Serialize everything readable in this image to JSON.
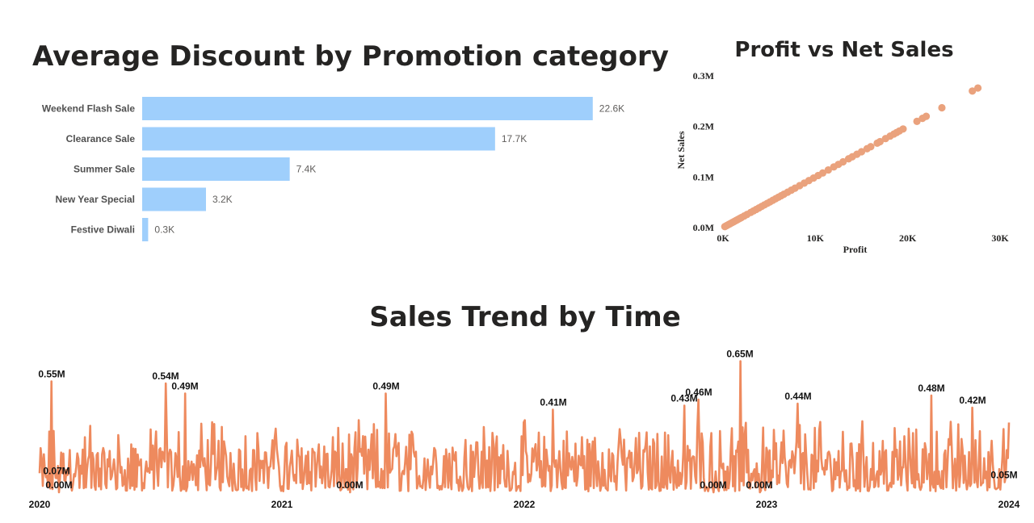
{
  "colors": {
    "bar": "#9FCFFC",
    "scatter": "#EAA27D",
    "line": "#EE8A5E"
  },
  "chart_data": [
    {
      "type": "bar",
      "orientation": "horizontal",
      "title": "Average Discount by Promotion category",
      "categories": [
        "Weekend Flash Sale",
        "Clearance Sale",
        "Summer Sale",
        "New Year Special",
        "Festive Diwali"
      ],
      "values": [
        22600,
        17700,
        7400,
        3200,
        300
      ],
      "data_labels": [
        "22.6K",
        "17.7K",
        "7.4K",
        "3.2K",
        "0.3K"
      ],
      "xlim": [
        0,
        23500
      ],
      "grid": false
    },
    {
      "type": "scatter",
      "title": "Profit vs Net Sales",
      "xlabel": "Profit",
      "ylabel": "Net Sales",
      "xlim": [
        0,
        30000
      ],
      "ylim": [
        0,
        300000
      ],
      "x_ticks": [
        "0K",
        "10K",
        "20K",
        "30K"
      ],
      "y_ticks": [
        "0.0M",
        "0.1M",
        "0.2M",
        "0.3M"
      ],
      "points": [
        [
          200,
          2000
        ],
        [
          400,
          4000
        ],
        [
          600,
          6000
        ],
        [
          800,
          8000
        ],
        [
          1000,
          10000
        ],
        [
          1200,
          12000
        ],
        [
          1400,
          14000
        ],
        [
          1600,
          16000
        ],
        [
          1800,
          18000
        ],
        [
          2000,
          20000
        ],
        [
          2300,
          23000
        ],
        [
          2600,
          26000
        ],
        [
          3000,
          30000
        ],
        [
          3300,
          33000
        ],
        [
          3600,
          36000
        ],
        [
          3900,
          39000
        ],
        [
          4200,
          42000
        ],
        [
          4500,
          45000
        ],
        [
          4800,
          48000
        ],
        [
          5100,
          51000
        ],
        [
          5400,
          54000
        ],
        [
          5700,
          57000
        ],
        [
          6000,
          60000
        ],
        [
          6300,
          63000
        ],
        [
          6600,
          66000
        ],
        [
          7000,
          70000
        ],
        [
          7400,
          74000
        ],
        [
          7800,
          78000
        ],
        [
          8300,
          83000
        ],
        [
          8800,
          88000
        ],
        [
          9300,
          93000
        ],
        [
          9800,
          98000
        ],
        [
          10300,
          103000
        ],
        [
          10800,
          108000
        ],
        [
          11400,
          114000
        ],
        [
          12000,
          120000
        ],
        [
          12500,
          125000
        ],
        [
          13000,
          130000
        ],
        [
          13600,
          136000
        ],
        [
          14000,
          140000
        ],
        [
          14500,
          145000
        ],
        [
          15000,
          150000
        ],
        [
          15600,
          156000
        ],
        [
          16000,
          160000
        ],
        [
          16700,
          167000
        ],
        [
          17000,
          170000
        ],
        [
          17600,
          176000
        ],
        [
          18100,
          181000
        ],
        [
          18500,
          185000
        ],
        [
          18800,
          188000
        ],
        [
          19100,
          191000
        ],
        [
          19500,
          195000
        ],
        [
          21000,
          210000
        ],
        [
          21600,
          216000
        ],
        [
          22000,
          220000
        ],
        [
          23700,
          237000
        ],
        [
          27000,
          270000
        ],
        [
          27600,
          276000
        ]
      ],
      "grid": false
    },
    {
      "type": "line",
      "title": "Sales Trend by Time",
      "x_ticks": [
        "2020",
        "2021",
        "2022",
        "2023",
        "2024"
      ],
      "xlim": [
        2020.0,
        2024.0
      ],
      "ylim": [
        0,
        0.68
      ],
      "y_unit": "M",
      "labeled_points": [
        {
          "x": 2020.05,
          "y": 0.55,
          "label": "0.55M"
        },
        {
          "x": 2020.07,
          "y": 0.07,
          "label": "0.07M"
        },
        {
          "x": 2020.08,
          "y": 0.0,
          "label": "0.00M"
        },
        {
          "x": 2020.52,
          "y": 0.54,
          "label": "0.54M"
        },
        {
          "x": 2020.6,
          "y": 0.49,
          "label": "0.49M"
        },
        {
          "x": 2021.28,
          "y": 0.0,
          "label": "0.00M"
        },
        {
          "x": 2021.43,
          "y": 0.49,
          "label": "0.49M"
        },
        {
          "x": 2022.12,
          "y": 0.41,
          "label": "0.41M"
        },
        {
          "x": 2022.66,
          "y": 0.43,
          "label": "0.43M"
        },
        {
          "x": 2022.72,
          "y": 0.46,
          "label": "0.46M"
        },
        {
          "x": 2022.78,
          "y": 0.0,
          "label": "0.00M"
        },
        {
          "x": 2022.89,
          "y": 0.65,
          "label": "0.65M"
        },
        {
          "x": 2022.97,
          "y": 0.0,
          "label": "0.00M"
        },
        {
          "x": 2023.13,
          "y": 0.44,
          "label": "0.44M"
        },
        {
          "x": 2023.68,
          "y": 0.48,
          "label": "0.48M"
        },
        {
          "x": 2023.85,
          "y": 0.42,
          "label": "0.42M"
        },
        {
          "x": 2023.98,
          "y": 0.05,
          "label": "0.05M"
        }
      ],
      "grid": false
    }
  ]
}
